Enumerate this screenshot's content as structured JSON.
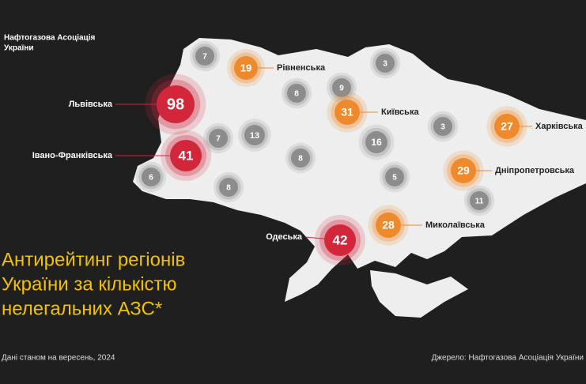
{
  "header": {
    "logo_line1": "Нафтогазова Асоціація",
    "logo_line2": "України"
  },
  "title": {
    "line1": "Антирейтинг регіонів",
    "line2": "України за кількістю",
    "line3": "нелегальних АЗС*"
  },
  "footnote": "Дані станом на вересень, 2024",
  "source": "Джерело: Нафтогазова Асоціація України",
  "bubbles": [
    {
      "value": 7,
      "color": "#8c8c8c"
    },
    {
      "value": 19,
      "color": "#ee8a2c",
      "region": "Рівненська"
    },
    {
      "value": 98,
      "color": "#d2263b",
      "region": "Львівська"
    },
    {
      "value": 8,
      "color": "#8c8c8c"
    },
    {
      "value": 9,
      "color": "#8c8c8c"
    },
    {
      "value": 3,
      "color": "#8c8c8c"
    },
    {
      "value": 31,
      "color": "#ee8a2c",
      "region": "Київська"
    },
    {
      "value": 7,
      "color": "#8c8c8c"
    },
    {
      "value": 13,
      "color": "#8c8c8c"
    },
    {
      "value": 41,
      "color": "#d2263b",
      "region": "Івано-Франківська"
    },
    {
      "value": 16,
      "color": "#8c8c8c"
    },
    {
      "value": 3,
      "color": "#8c8c8c"
    },
    {
      "value": 27,
      "color": "#ee8a2c",
      "region": "Харківська"
    },
    {
      "value": 8,
      "color": "#8c8c8c"
    },
    {
      "value": 6,
      "color": "#8c8c8c"
    },
    {
      "value": 8,
      "color": "#8c8c8c"
    },
    {
      "value": 5,
      "color": "#8c8c8c"
    },
    {
      "value": 29,
      "color": "#ee8a2c",
      "region": "Дніпропетровська"
    },
    {
      "value": 11,
      "color": "#8c8c8c"
    },
    {
      "value": 42,
      "color": "#d2263b",
      "region": "Одеська"
    },
    {
      "value": 28,
      "color": "#ee8a2c",
      "region": "Миколаївська"
    }
  ]
}
